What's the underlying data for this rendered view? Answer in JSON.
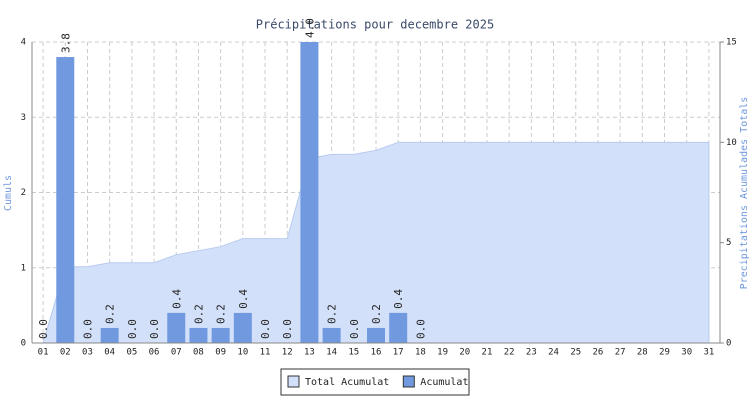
{
  "chart_data": {
    "type": "bar-area",
    "title": "Précipitations pour decembre 2025",
    "y_label": "Cumuls",
    "y2_label": "Precipitations Acumulades Totals",
    "categories": [
      "01",
      "02",
      "03",
      "04",
      "05",
      "06",
      "07",
      "08",
      "09",
      "10",
      "11",
      "12",
      "13",
      "14",
      "15",
      "16",
      "17",
      "18",
      "19",
      "20",
      "21",
      "22",
      "23",
      "24",
      "25",
      "26",
      "27",
      "28",
      "29",
      "30",
      "31"
    ],
    "series": [
      {
        "name": "Total Acumulat",
        "type": "area",
        "axis": "y2",
        "color": "#d3e0f9",
        "values": [
          0.0,
          3.8,
          3.8,
          4.0,
          4.0,
          4.0,
          4.4,
          4.6,
          4.8,
          5.2,
          5.2,
          5.2,
          9.2,
          9.4,
          9.4,
          9.6,
          10.0,
          10.0,
          10.0,
          10.0,
          10.0,
          10.0,
          10.0,
          10.0,
          10.0,
          10.0,
          10.0,
          10.0,
          10.0,
          10.0,
          10.0
        ]
      },
      {
        "name": "Acumulat",
        "type": "bar",
        "color": "#7199e0",
        "values": [
          0.0,
          3.8,
          0.0,
          0.2,
          0.0,
          0.0,
          0.4,
          0.2,
          0.2,
          0.4,
          0.0,
          0.0,
          4.0,
          0.2,
          0.0,
          0.2,
          0.4,
          0.0,
          null,
          null,
          null,
          null,
          null,
          null,
          null,
          null,
          null,
          null,
          null,
          null,
          null
        ],
        "value_labels": [
          "0.0",
          "3.8",
          "0.0",
          "0.2",
          "0.0",
          "0.0",
          "0.4",
          "0.2",
          "0.2",
          "0.4",
          "0.0",
          "0.0",
          "4.0",
          "0.2",
          "0.0",
          "0.2",
          "0.4",
          "0.0",
          null,
          null,
          null,
          null,
          null,
          null,
          null,
          null,
          null,
          null,
          null,
          null,
          null
        ]
      }
    ],
    "ylim": [
      0,
      4
    ],
    "yticks": [
      0,
      1,
      2,
      3,
      4
    ],
    "y2lim": [
      0,
      15
    ],
    "y2ticks": [
      0,
      5,
      10,
      15
    ],
    "grid": true,
    "legend": "bottom"
  }
}
